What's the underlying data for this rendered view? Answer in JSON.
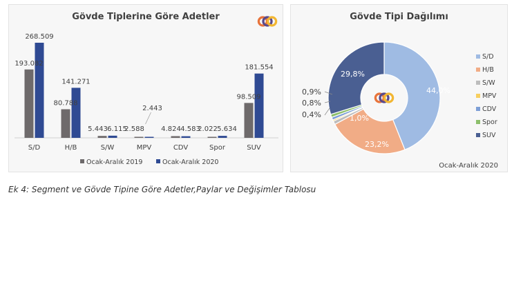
{
  "colors": {
    "series1": "#6e6a6b",
    "series2": "#2f4a93",
    "logo_orange": "#e8743b",
    "logo_red": "#d94a3f",
    "logo_purple": "#5a4a8a",
    "logo_yellow": "#f2b632"
  },
  "chart_data": [
    {
      "type": "bar",
      "title": "Gövde Tiplerine Göre Adetler",
      "categories": [
        "S/D",
        "H/B",
        "S/W",
        "MPV",
        "CDV",
        "Spor",
        "SUV"
      ],
      "series": [
        {
          "name": "Ocak-Aralık 2019",
          "values": [
            193082,
            80788,
            5443,
            2588,
            4824,
            2022,
            98509
          ],
          "labels": [
            "193.082",
            "80.788",
            "5.443",
            "2.588",
            "4.824",
            "2.022",
            "98.509"
          ]
        },
        {
          "name": "Ocak-Aralık 2020",
          "values": [
            268509,
            141271,
            6115,
            2443,
            4583,
            5634,
            181554
          ],
          "labels": [
            "268.509",
            "141.271",
            "6.115",
            "2.443",
            "4.583",
            "5.634",
            "181.554"
          ]
        }
      ],
      "legend": "bottom",
      "grid": false
    },
    {
      "type": "pie",
      "title": "Gövde Tipi Dağılımı",
      "subtitle": "Ocak-Aralık 2020",
      "labels": [
        "S/D",
        "H/B",
        "S/W",
        "MPV",
        "CDV",
        "Spor",
        "SUV"
      ],
      "values": [
        44.0,
        23.2,
        1.0,
        0.4,
        0.8,
        0.9,
        29.8
      ],
      "value_labels": [
        "44,0%",
        "23,2%",
        "1,0%",
        "0,4%",
        "0,8%",
        "0,9%",
        "29,8%"
      ],
      "colors": [
        "#9fbbe3",
        "#f1ac86",
        "#bdbdbd",
        "#f7cf5f",
        "#7d9fd6",
        "#8cbf6b",
        "#4a5f92"
      ],
      "donut": true,
      "legend": "right"
    }
  ],
  "caption": "Ek 4: Segment ve Gövde Tipine Göre Adetler,Paylar ve Değişimler Tablosu"
}
